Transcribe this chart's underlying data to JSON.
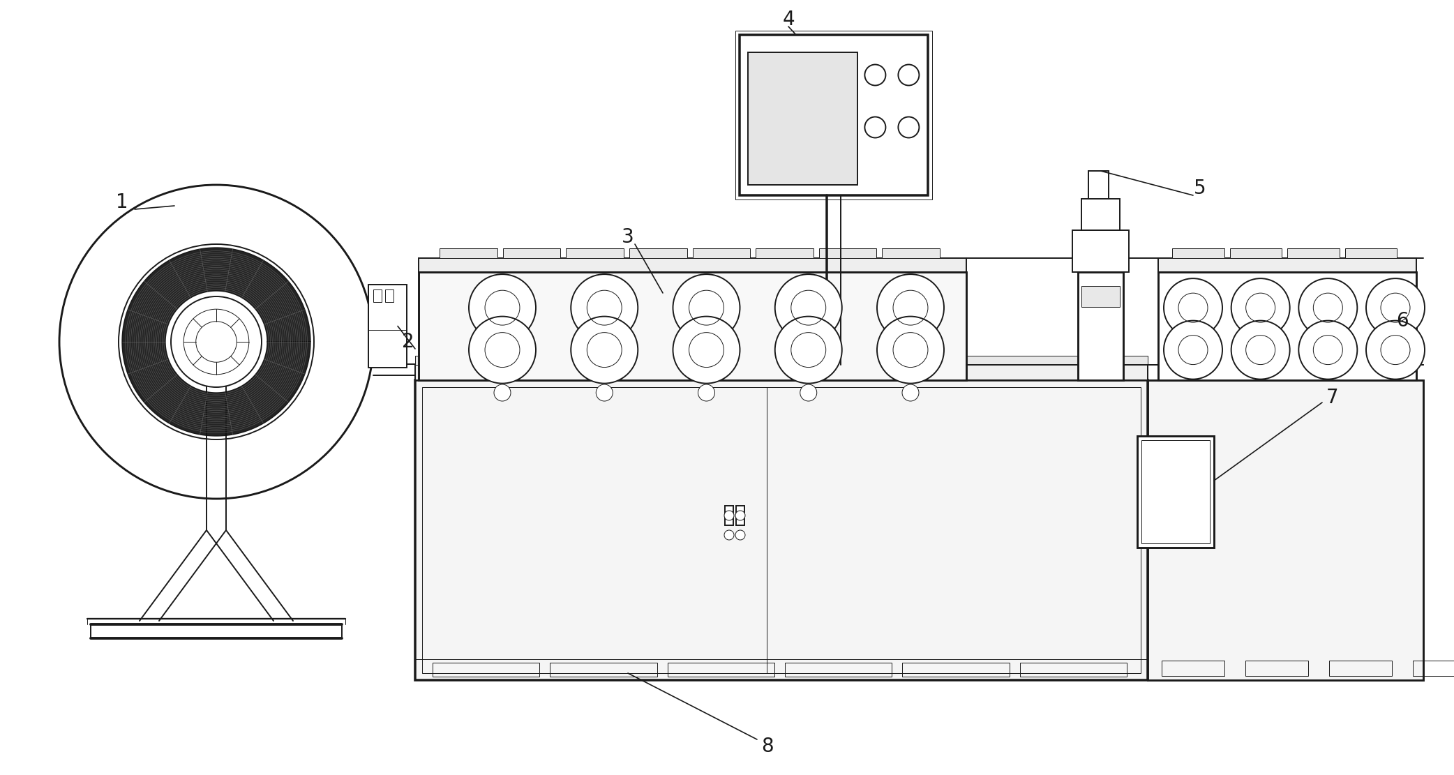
{
  "bg_color": "#ffffff",
  "line_color": "#1a1a1a",
  "lw": 1.4,
  "tlw": 0.7,
  "figsize": [
    20.84,
    11.11
  ],
  "dpi": 100
}
